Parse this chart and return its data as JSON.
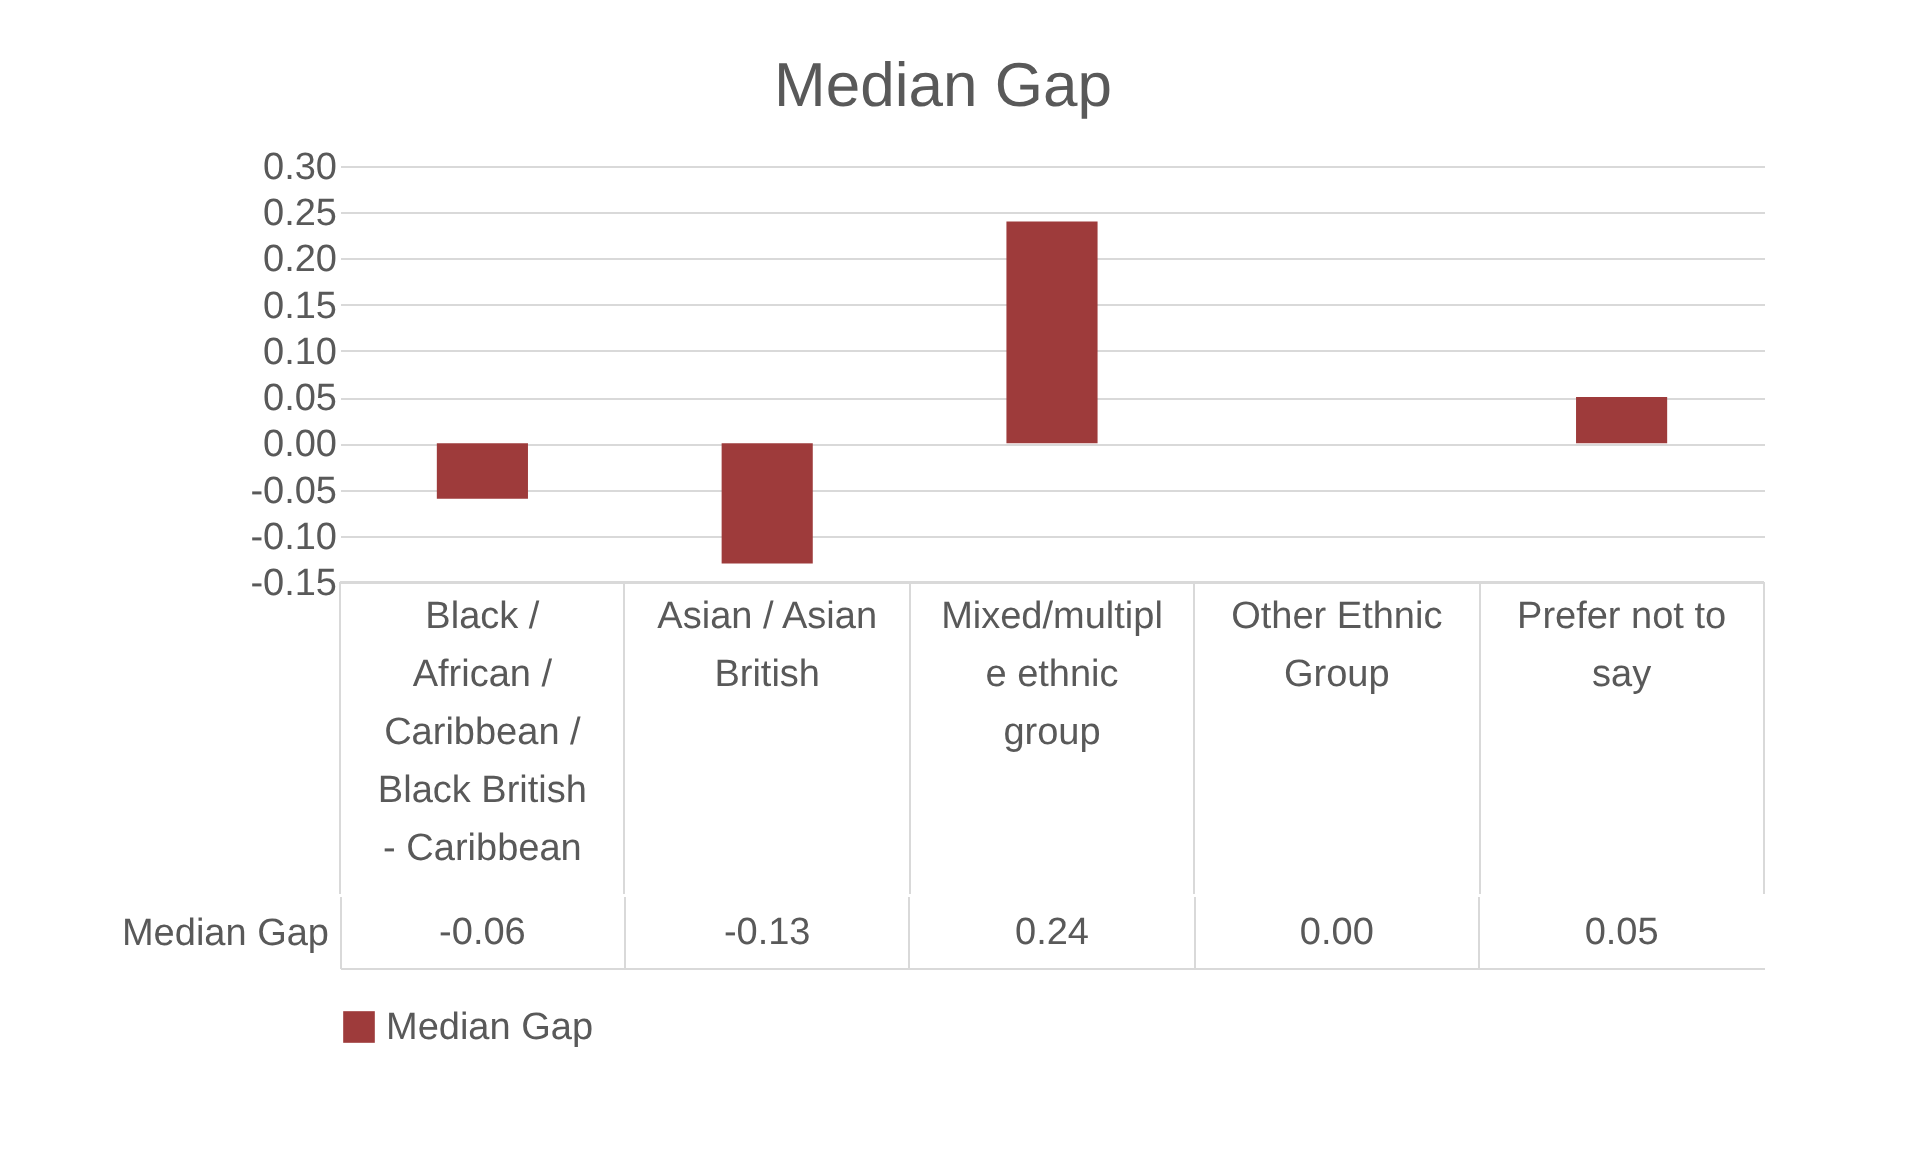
{
  "chart_data": {
    "type": "bar",
    "title": "Median Gap",
    "categories": [
      "Black / African / Caribbean / Black British - Caribbean",
      "Asian / Asian British",
      "Mixed/multiple ethnic group",
      "Other Ethnic Group",
      "Prefer not to say"
    ],
    "series": [
      {
        "name": "Median Gap",
        "color": "#9e3b3b",
        "values": [
          -0.06,
          -0.13,
          0.24,
          0.0,
          0.05
        ]
      }
    ],
    "value_labels": [
      "-0.06",
      "-0.13",
      "0.24",
      "0.00",
      "0.05"
    ],
    "ylim": [
      -0.15,
      0.3
    ],
    "yticks": [
      {
        "value": -0.15,
        "label": "-0.15"
      },
      {
        "value": -0.1,
        "label": "-0.10"
      },
      {
        "value": -0.05,
        "label": "-0.05"
      },
      {
        "value": 0,
        "label": "0.00"
      },
      {
        "value": 0.05,
        "label": "0.05"
      },
      {
        "value": 0.1,
        "label": "0.10"
      },
      {
        "value": 0.15,
        "label": "0.15"
      },
      {
        "value": 0.2,
        "label": "0.20"
      },
      {
        "value": 0.25,
        "label": "0.25"
      },
      {
        "value": 0.3,
        "label": "0.30"
      }
    ],
    "grid": "y",
    "legend": "bottom"
  }
}
